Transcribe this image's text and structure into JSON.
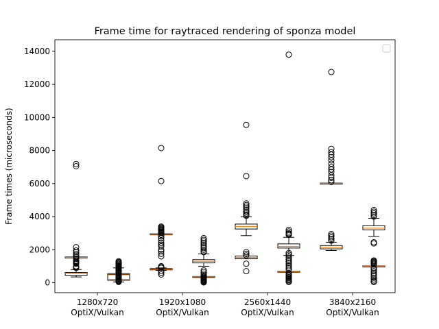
{
  "chart_data": {
    "type": "boxplot",
    "title": "Frame time for raytraced rendering of sponza model",
    "xlabel": "",
    "ylabel": "Frame times (microseconds)",
    "ylim": [
      -600,
      14700
    ],
    "yticks": [
      0,
      2000,
      4000,
      6000,
      8000,
      10000,
      12000,
      14000
    ],
    "categories": [
      "1280x720\nOptiX/Vulkan",
      "1920x1080\nOptiX/Vulkan",
      "2560x1440\nOptiX/Vulkan",
      "3840x2160\nOptiX/Vulkan"
    ],
    "category_centers": [
      1.5,
      3.5,
      5.5,
      7.5
    ],
    "legend": {
      "placement": "upper right",
      "entries": []
    },
    "grid": false,
    "colors": {
      "box": "#000000",
      "median": "#ff7f0e"
    },
    "boxes": [
      {
        "pos": 1,
        "whislo": 350,
        "q1": 450,
        "med": 550,
        "q3": 620,
        "whishi": 800,
        "main": [
          1500,
          1560
        ],
        "outliers": [
          7050,
          7180,
          2150,
          1950,
          1850,
          1750,
          1650,
          1550,
          1450,
          1350,
          1300,
          1250,
          1200,
          1150,
          1000,
          950,
          900
        ]
      },
      {
        "pos": 2,
        "whislo": 50,
        "q1": 150,
        "med": 200,
        "q3": 500,
        "whishi": 900,
        "main": [
          490,
          560
        ],
        "outliers": [
          1300,
          1250,
          1200,
          1150,
          1100,
          1050,
          1000,
          950,
          900,
          850,
          800,
          750,
          700,
          650,
          600,
          550,
          450,
          400,
          350,
          300,
          250,
          200,
          150,
          120,
          100,
          80,
          50
        ]
      },
      {
        "pos": 3,
        "whislo": 750,
        "q1": 780,
        "med": 820,
        "q3": 860,
        "whishi": 900,
        "main": [
          2900,
          2960
        ],
        "outliers": [
          8150,
          6150,
          3400,
          3350,
          3300,
          3250,
          3200,
          3150,
          3100,
          3050,
          3000,
          2900,
          2800,
          2700,
          2550,
          2400,
          2300,
          2200,
          2000,
          1900,
          1750,
          1600,
          1000,
          950,
          900,
          700,
          600,
          500
        ]
      },
      {
        "pos": 4,
        "whislo": 1000,
        "q1": 1200,
        "med": 1300,
        "q3": 1400,
        "whishi": 1750,
        "main": [
          340,
          380
        ],
        "outliers": [
          2700,
          2600,
          2500,
          2400,
          2300,
          2200,
          2100,
          2000,
          1900,
          1850,
          750,
          650,
          550,
          450,
          380,
          320,
          280,
          240,
          200,
          160,
          120,
          80,
          50,
          20
        ]
      },
      {
        "pos": 5,
        "whislo": 2850,
        "q1": 3250,
        "med": 3400,
        "q3": 3550,
        "whishi": 4000,
        "main": [
          1450,
          1620
        ],
        "outliers": [
          9550,
          6450,
          4800,
          4700,
          4600,
          4500,
          4400,
          4300,
          4200,
          4100,
          4050,
          1850,
          1750,
          1650,
          1150,
          700
        ]
      },
      {
        "pos": 6,
        "whislo": 1650,
        "q1": 2100,
        "med": 2200,
        "q3": 2350,
        "whishi": 2750,
        "main": [
          660,
          700
        ],
        "outliers": [
          13800,
          3200,
          3100,
          3000,
          2950,
          2900,
          1800,
          1700,
          1600,
          1500,
          1400,
          1300,
          1200,
          1100,
          1000,
          900,
          800,
          580,
          520,
          460,
          400,
          340,
          280,
          220,
          160,
          100,
          50
        ]
      },
      {
        "pos": 7,
        "whislo": 1950,
        "q1": 2050,
        "med": 2150,
        "q3": 2250,
        "whishi": 2450,
        "main": [
          5990,
          6030
        ],
        "outliers": [
          12750,
          8100,
          7900,
          7750,
          7600,
          7400,
          7200,
          7000,
          6850,
          6700,
          6500,
          6350,
          6200,
          6100,
          2950,
          2850,
          2750,
          2650,
          2550
        ]
      },
      {
        "pos": 8,
        "whislo": 2800,
        "q1": 3200,
        "med": 3300,
        "q3": 3450,
        "whishi": 3900,
        "main": [
          990,
          1020
        ],
        "outliers": [
          4400,
          4300,
          4200,
          4100,
          4000,
          2450,
          2380,
          1350,
          1300,
          1250,
          1200,
          1150,
          1100,
          900,
          800,
          700,
          600,
          500,
          400,
          300,
          200,
          100,
          50
        ]
      }
    ]
  }
}
